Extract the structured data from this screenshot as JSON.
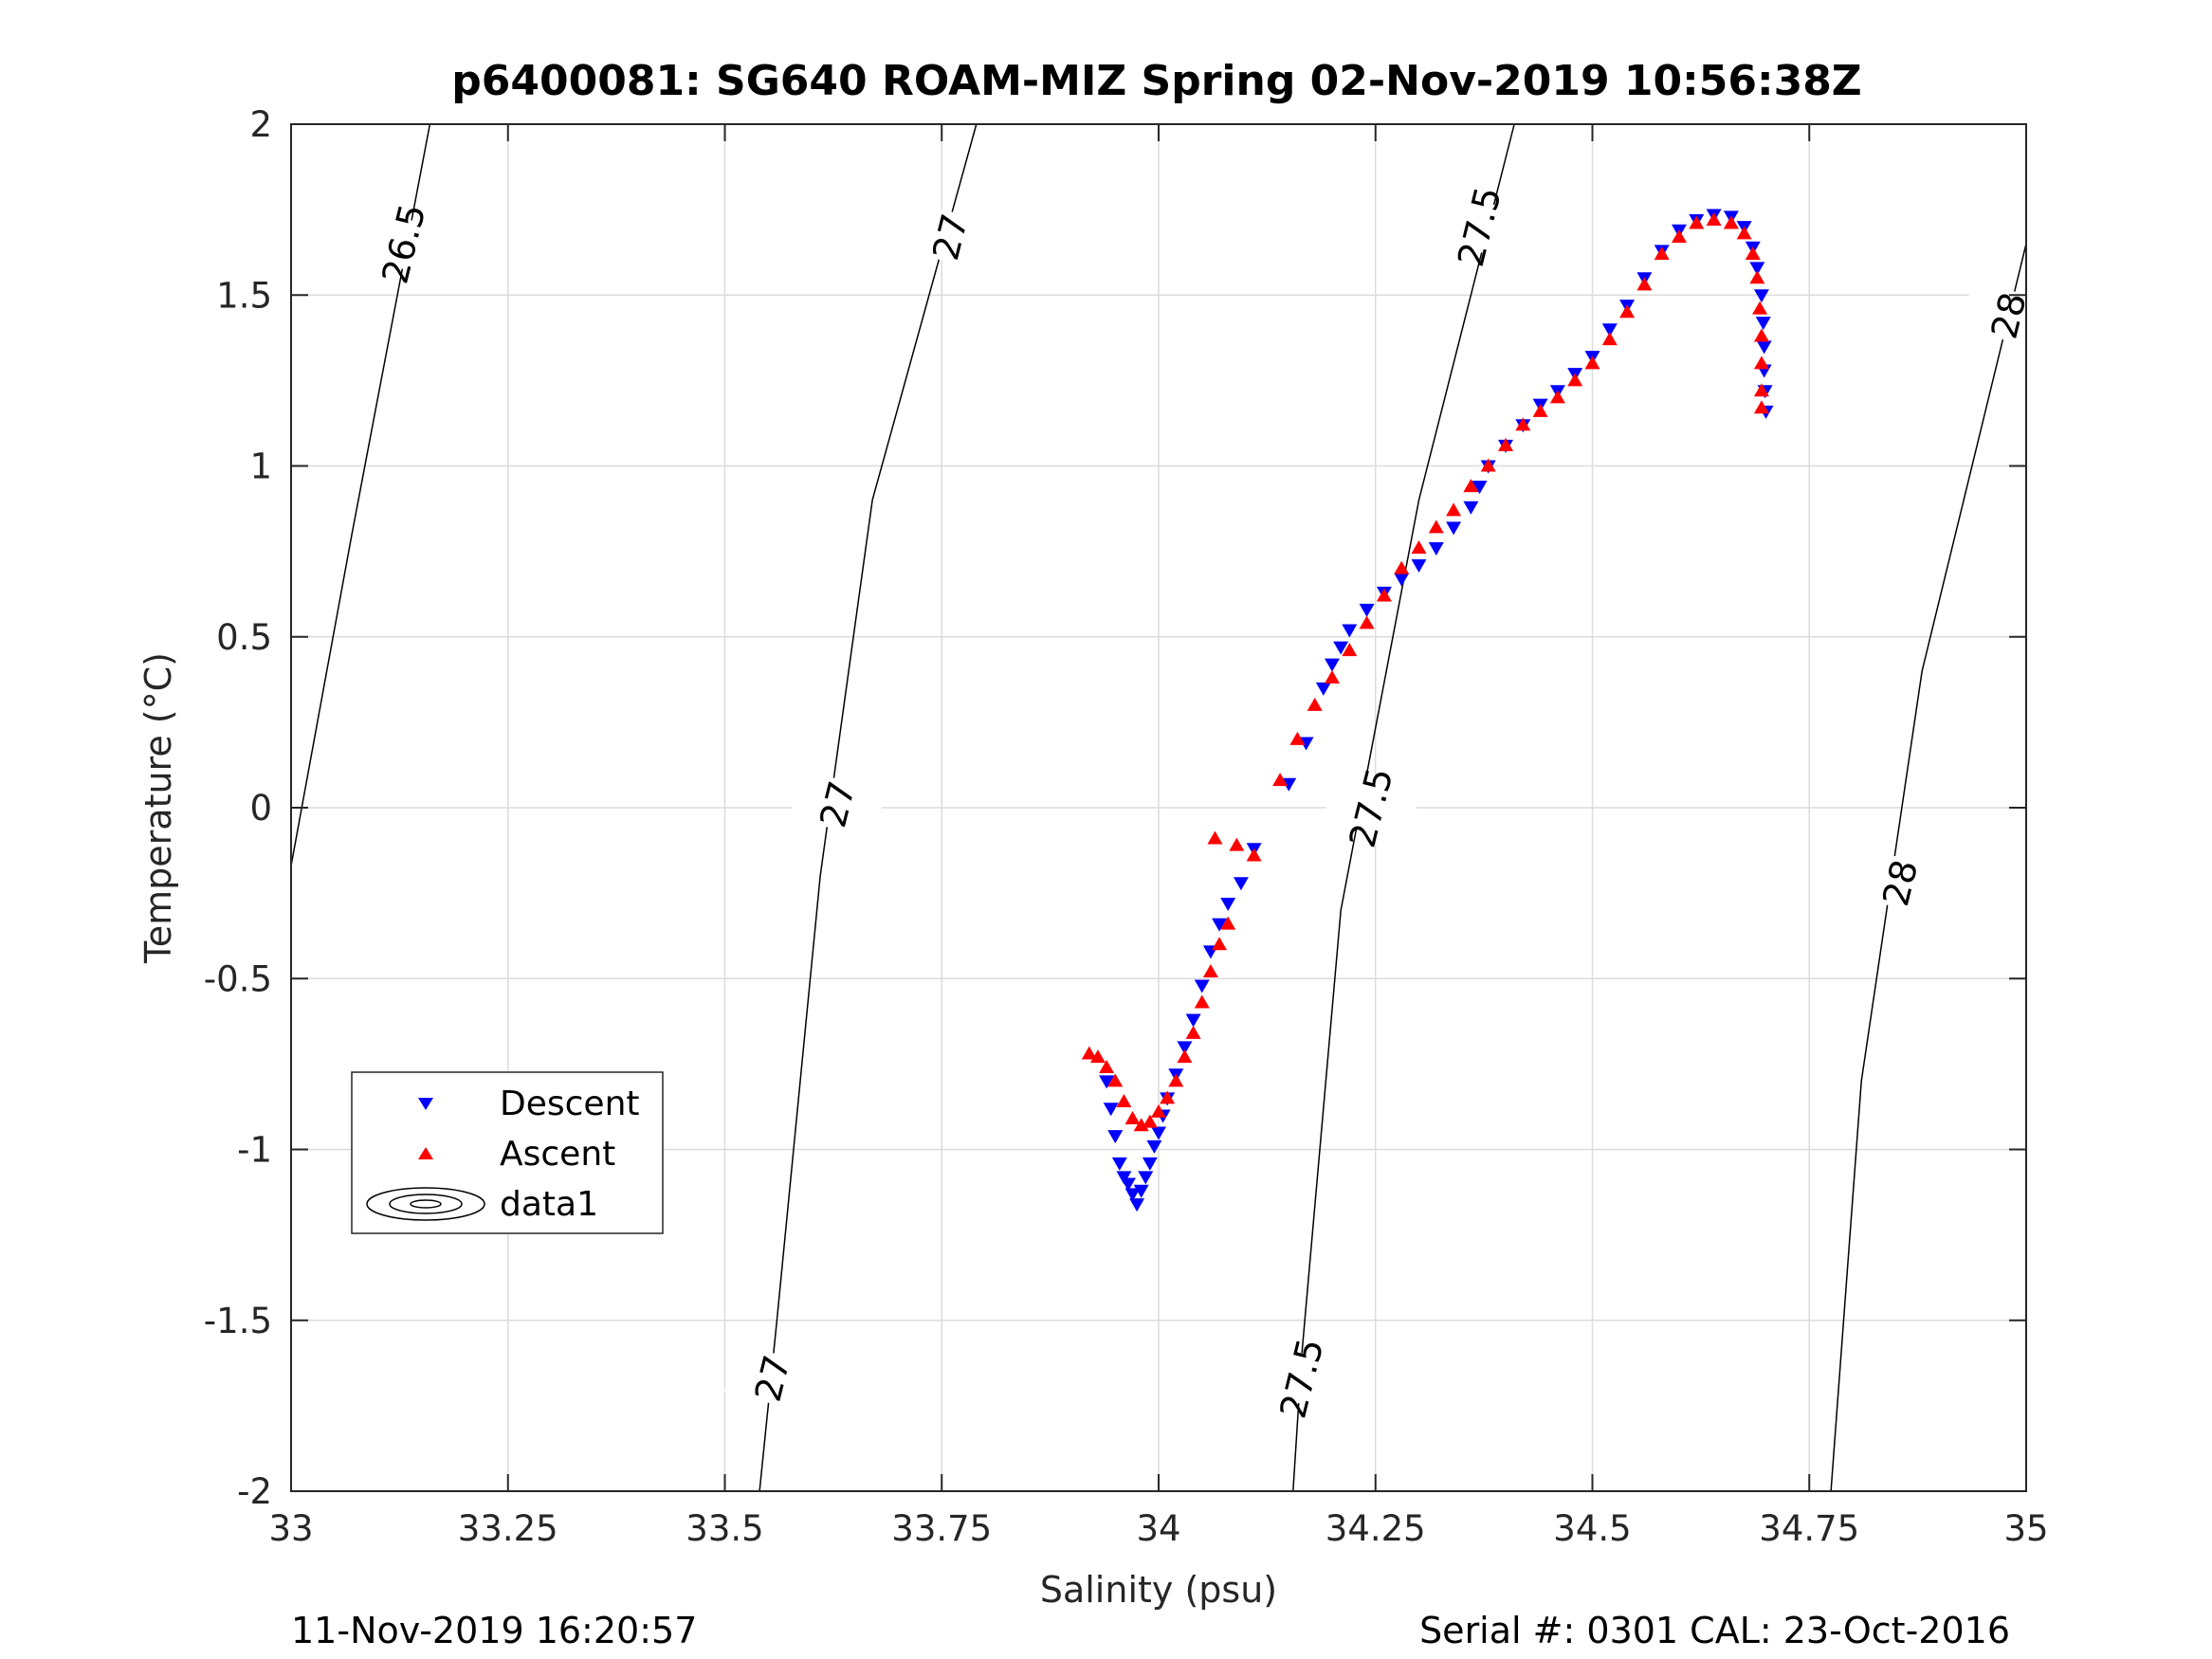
{
  "chart_data": {
    "type": "scatter",
    "title": "p6400081: SG640 ROAM-MIZ Spring 02-Nov-2019 10:56:38Z",
    "xlabel": "Salinity (psu)",
    "ylabel": "Temperature (°C)",
    "xlim": [
      33,
      35
    ],
    "ylim": [
      -2,
      2
    ],
    "xticks": [
      "33",
      "33.25",
      "33.5",
      "33.75",
      "34",
      "34.25",
      "34.5",
      "34.75",
      "35"
    ],
    "yticks": [
      "2",
      "1.5",
      "1",
      "0.5",
      "0",
      "-0.5",
      "-1",
      "-1.5",
      "-2"
    ],
    "grid": true,
    "legend_position": "lower-left",
    "series": [
      {
        "name": "Descent",
        "marker": "triangle-down",
        "color": "#0000ff",
        "points": [
          [
            33.94,
            -0.8
          ],
          [
            33.945,
            -0.88
          ],
          [
            33.95,
            -0.96
          ],
          [
            33.955,
            -1.04
          ],
          [
            33.96,
            -1.08
          ],
          [
            33.965,
            -1.1
          ],
          [
            33.97,
            -1.13
          ],
          [
            33.975,
            -1.16
          ],
          [
            33.98,
            -1.12
          ],
          [
            33.985,
            -1.08
          ],
          [
            33.99,
            -1.04
          ],
          [
            33.995,
            -0.99
          ],
          [
            34.0,
            -0.95
          ],
          [
            34.005,
            -0.9
          ],
          [
            34.01,
            -0.85
          ],
          [
            34.02,
            -0.78
          ],
          [
            34.03,
            -0.7
          ],
          [
            34.04,
            -0.62
          ],
          [
            34.05,
            -0.52
          ],
          [
            34.06,
            -0.42
          ],
          [
            34.07,
            -0.34
          ],
          [
            34.08,
            -0.28
          ],
          [
            34.095,
            -0.22
          ],
          [
            34.11,
            -0.12
          ],
          [
            34.15,
            0.07
          ],
          [
            34.17,
            0.19
          ],
          [
            34.19,
            0.35
          ],
          [
            34.2,
            0.42
          ],
          [
            34.21,
            0.47
          ],
          [
            34.22,
            0.52
          ],
          [
            34.24,
            0.58
          ],
          [
            34.26,
            0.63
          ],
          [
            34.28,
            0.67
          ],
          [
            34.3,
            0.71
          ],
          [
            34.32,
            0.76
          ],
          [
            34.34,
            0.82
          ],
          [
            34.36,
            0.88
          ],
          [
            34.37,
            0.94
          ],
          [
            34.38,
            1.0
          ],
          [
            34.4,
            1.06
          ],
          [
            34.42,
            1.12
          ],
          [
            34.44,
            1.18
          ],
          [
            34.46,
            1.22
          ],
          [
            34.48,
            1.27
          ],
          [
            34.5,
            1.32
          ],
          [
            34.52,
            1.4
          ],
          [
            34.54,
            1.47
          ],
          [
            34.56,
            1.55
          ],
          [
            34.58,
            1.63
          ],
          [
            34.6,
            1.69
          ],
          [
            34.62,
            1.72
          ],
          [
            34.64,
            1.735
          ],
          [
            34.66,
            1.73
          ],
          [
            34.675,
            1.7
          ],
          [
            34.685,
            1.64
          ],
          [
            34.69,
            1.58
          ],
          [
            34.695,
            1.5
          ],
          [
            34.697,
            1.42
          ],
          [
            34.698,
            1.35
          ],
          [
            34.698,
            1.28
          ],
          [
            34.699,
            1.22
          ],
          [
            34.7,
            1.16
          ]
        ]
      },
      {
        "name": "Ascent",
        "marker": "triangle-up",
        "color": "#ff0000",
        "points": [
          [
            33.92,
            -0.72
          ],
          [
            33.93,
            -0.73
          ],
          [
            33.94,
            -0.76
          ],
          [
            33.95,
            -0.8
          ],
          [
            33.96,
            -0.86
          ],
          [
            33.97,
            -0.91
          ],
          [
            33.98,
            -0.93
          ],
          [
            33.99,
            -0.92
          ],
          [
            34.0,
            -0.89
          ],
          [
            34.01,
            -0.85
          ],
          [
            34.02,
            -0.8
          ],
          [
            34.03,
            -0.73
          ],
          [
            34.04,
            -0.66
          ],
          [
            34.05,
            -0.57
          ],
          [
            34.06,
            -0.48
          ],
          [
            34.07,
            -0.4
          ],
          [
            34.08,
            -0.34
          ],
          [
            34.065,
            -0.09
          ],
          [
            34.09,
            -0.11
          ],
          [
            34.11,
            -0.14
          ],
          [
            34.14,
            0.08
          ],
          [
            34.16,
            0.2
          ],
          [
            34.18,
            0.3
          ],
          [
            34.2,
            0.38
          ],
          [
            34.22,
            0.46
          ],
          [
            34.24,
            0.54
          ],
          [
            34.26,
            0.62
          ],
          [
            34.28,
            0.7
          ],
          [
            34.3,
            0.76
          ],
          [
            34.32,
            0.82
          ],
          [
            34.34,
            0.87
          ],
          [
            34.36,
            0.94
          ],
          [
            34.38,
            1.0
          ],
          [
            34.4,
            1.06
          ],
          [
            34.42,
            1.12
          ],
          [
            34.44,
            1.16
          ],
          [
            34.46,
            1.2
          ],
          [
            34.48,
            1.25
          ],
          [
            34.5,
            1.3
          ],
          [
            34.52,
            1.37
          ],
          [
            34.54,
            1.45
          ],
          [
            34.56,
            1.53
          ],
          [
            34.58,
            1.62
          ],
          [
            34.6,
            1.67
          ],
          [
            34.62,
            1.71
          ],
          [
            34.64,
            1.72
          ],
          [
            34.66,
            1.71
          ],
          [
            34.675,
            1.68
          ],
          [
            34.685,
            1.62
          ],
          [
            34.69,
            1.55
          ],
          [
            34.693,
            1.46
          ],
          [
            34.695,
            1.38
          ],
          [
            34.695,
            1.3
          ],
          [
            34.695,
            1.22
          ],
          [
            34.695,
            1.17
          ]
        ]
      },
      {
        "name": "data1",
        "marker": "contour",
        "color": "#000000",
        "contours": [
          {
            "level": "26.5",
            "points": [
              [
                33.0,
                -0.17
              ],
              [
                33.07,
                0.8
              ],
              [
                33.16,
                2.0
              ]
            ]
          },
          {
            "level": "27",
            "points": [
              [
                33.54,
                -2.0
              ],
              [
                33.56,
                -1.5
              ],
              [
                33.61,
                -0.2
              ],
              [
                33.67,
                0.9
              ],
              [
                33.79,
                2.0
              ]
            ]
          },
          {
            "level": "27.5",
            "points": [
              [
                34.155,
                -2.0
              ],
              [
                34.165,
                -1.6
              ],
              [
                34.21,
                -0.3
              ],
              [
                34.3,
                0.9
              ],
              [
                34.41,
                2.0
              ]
            ]
          },
          {
            "level": "28",
            "points": [
              [
                34.775,
                -2.0
              ],
              [
                34.81,
                -0.8
              ],
              [
                34.88,
                0.4
              ],
              [
                35.0,
                1.65
              ]
            ]
          }
        ],
        "contour_labels": [
          {
            "text": "26.5",
            "at": [
              33.13,
              1.65
            ]
          },
          {
            "text": "27",
            "at": [
              33.76,
              1.67
            ]
          },
          {
            "text": "27",
            "at": [
              33.63,
              0.01
            ]
          },
          {
            "text": "27",
            "at": [
              33.555,
              -1.67
            ]
          },
          {
            "text": "27.5",
            "at": [
              34.37,
              1.7
            ]
          },
          {
            "text": "27.5",
            "at": [
              34.245,
              0.0
            ]
          },
          {
            "text": "27.5",
            "at": [
              34.165,
              -1.67
            ]
          },
          {
            "text": "28",
            "at": [
              34.98,
              1.44
            ]
          },
          {
            "text": "28",
            "at": [
              34.855,
              -0.22
            ]
          }
        ]
      }
    ]
  },
  "footer": {
    "timestamp": "11-Nov-2019 16:20:57",
    "serial": "Serial #: 0301  CAL: 23-Oct-2016"
  }
}
